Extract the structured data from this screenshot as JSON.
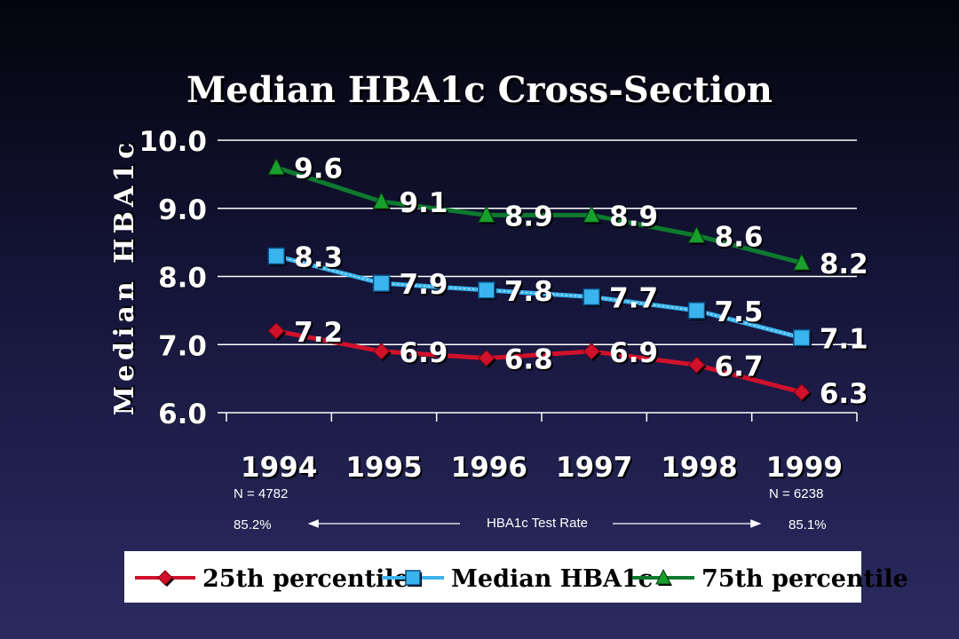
{
  "chart_data": {
    "type": "line",
    "title": "Median HBA1c Cross-Section",
    "ylabel": "Median HBA1c",
    "xlabel": "",
    "categories": [
      "1994",
      "1995",
      "1996",
      "1997",
      "1998",
      "1999"
    ],
    "y_ticks": [
      "10.0",
      "9.0",
      "8.0",
      "7.0",
      "6.0"
    ],
    "ylim": [
      6.0,
      10.0
    ],
    "grid": true,
    "legend_position": "bottom",
    "series": [
      {
        "name": "25th percentile",
        "values": [
          7.2,
          6.9,
          6.8,
          6.9,
          6.7,
          6.3
        ],
        "labels": [
          "7.2",
          "6.9",
          "6.8",
          "6.9",
          "6.7",
          "6.3"
        ],
        "color": "#d0112b",
        "marker": "diamond"
      },
      {
        "name": "Median HBA1c",
        "values": [
          8.3,
          7.9,
          7.8,
          7.7,
          7.5,
          7.1
        ],
        "labels": [
          "8.3",
          "7.9",
          "7.8",
          "7.7",
          "7.5",
          "7.1"
        ],
        "color": "#3ab4ee",
        "marker": "square"
      },
      {
        "name": "75th percentile",
        "values": [
          9.6,
          9.1,
          8.9,
          8.9,
          8.6,
          8.2
        ],
        "labels": [
          "9.6",
          "9.1",
          "8.9",
          "8.9",
          "8.6",
          "8.2"
        ],
        "color": "#0e7a2e",
        "marker": "triangle"
      }
    ],
    "annotations": {
      "n_left": "N = 4782",
      "n_right": "N = 6238",
      "rate_left": "85.2%",
      "rate_right": "85.1%",
      "rate_label": "HBA1c Test Rate"
    }
  }
}
